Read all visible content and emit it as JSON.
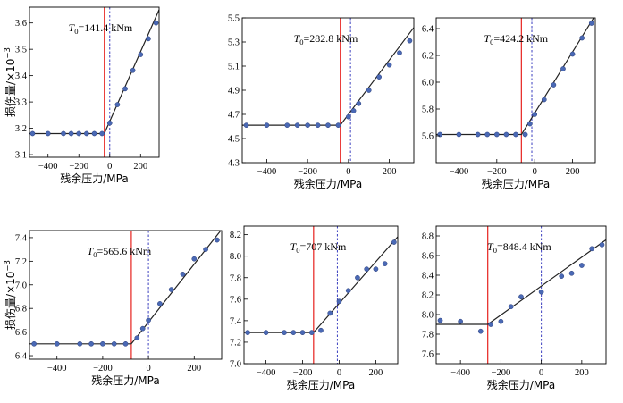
{
  "chart_data": [
    {
      "type": "scatter",
      "annotation_symbol": "T",
      "annotation_sub": "0",
      "annotation_value": "=141.4 kNm",
      "xlabel": "残余压力/MPa",
      "ylabel": "损伤量/×10",
      "ylabel_exp": "−3",
      "xlim": [
        -520,
        320
      ],
      "ylim": [
        3.09,
        3.66
      ],
      "xticks": [
        -400,
        -200,
        0,
        200
      ],
      "yticks": [
        3.1,
        3.2,
        3.3,
        3.4,
        3.5,
        3.6
      ],
      "red_line_x": -35,
      "blue_dashed_x": 0,
      "points": {
        "x": [
          -500,
          -400,
          -300,
          -250,
          -200,
          -150,
          -100,
          -50,
          0,
          50,
          100,
          150,
          200,
          250,
          300
        ],
        "y": [
          3.18,
          3.18,
          3.18,
          3.18,
          3.18,
          3.18,
          3.18,
          3.18,
          3.22,
          3.29,
          3.35,
          3.42,
          3.48,
          3.54,
          3.6
        ]
      },
      "fit_line": {
        "x": [
          -520,
          -35,
          320
        ],
        "y": [
          3.18,
          3.18,
          3.65
        ]
      }
    },
    {
      "type": "scatter",
      "annotation_symbol": "T",
      "annotation_sub": "0",
      "annotation_value": "=282.8 kNm",
      "xlabel": "残余压力/MPa",
      "ylabel": "",
      "ylabel_exp": "",
      "xlim": [
        -520,
        320
      ],
      "ylim": [
        4.3,
        5.5
      ],
      "xticks": [
        -400,
        -200,
        0,
        200
      ],
      "yticks": [
        4.3,
        4.5,
        4.7,
        4.9,
        5.1,
        5.3,
        5.5
      ],
      "red_line_x": -40,
      "blue_dashed_x": 10,
      "points": {
        "x": [
          -500,
          -400,
          -300,
          -250,
          -200,
          -150,
          -100,
          -50,
          0,
          25,
          50,
          100,
          150,
          200,
          250,
          300
        ],
        "y": [
          4.61,
          4.61,
          4.61,
          4.61,
          4.61,
          4.61,
          4.61,
          4.61,
          4.68,
          4.73,
          4.79,
          4.9,
          5.01,
          5.11,
          5.21,
          5.31
        ]
      },
      "fit_line": {
        "x": [
          -520,
          -40,
          320
        ],
        "y": [
          4.61,
          4.61,
          5.42
        ]
      }
    },
    {
      "type": "scatter",
      "annotation_symbol": "T",
      "annotation_sub": "0",
      "annotation_value": "=424.2 kNm",
      "xlabel": "残余压力/MPa",
      "ylabel": "",
      "ylabel_exp": "",
      "xlim": [
        -520,
        320
      ],
      "ylim": [
        5.4,
        6.48
      ],
      "xticks": [
        -400,
        -200,
        0,
        200
      ],
      "yticks": [
        5.6,
        5.8,
        6.0,
        6.2,
        6.4
      ],
      "red_line_x": -70,
      "blue_dashed_x": -15,
      "points": {
        "x": [
          -500,
          -400,
          -300,
          -250,
          -200,
          -150,
          -100,
          -50,
          -25,
          0,
          50,
          100,
          150,
          200,
          250,
          300
        ],
        "y": [
          5.61,
          5.61,
          5.61,
          5.61,
          5.61,
          5.61,
          5.61,
          5.61,
          5.69,
          5.76,
          5.87,
          5.98,
          6.1,
          6.21,
          6.33,
          6.44
        ]
      },
      "fit_line": {
        "x": [
          -520,
          -70,
          320
        ],
        "y": [
          5.61,
          5.61,
          6.5
        ]
      }
    },
    {
      "type": "scatter",
      "annotation_symbol": "T",
      "annotation_sub": "0",
      "annotation_value": "=565.6 kNm",
      "xlabel": "残余压力/MPa",
      "ylabel": "损伤量/×10",
      "ylabel_exp": "−3",
      "xlim": [
        -520,
        320
      ],
      "ylim": [
        6.37,
        7.46
      ],
      "xticks": [
        -400,
        -200,
        0,
        200
      ],
      "yticks": [
        6.4,
        6.6,
        6.8,
        7.0,
        7.2,
        7.4
      ],
      "red_line_x": -75,
      "blue_dashed_x": 0,
      "points": {
        "x": [
          -500,
          -400,
          -300,
          -250,
          -200,
          -150,
          -100,
          -50,
          -25,
          0,
          50,
          100,
          150,
          200,
          250,
          300
        ],
        "y": [
          6.5,
          6.5,
          6.5,
          6.5,
          6.5,
          6.5,
          6.5,
          6.55,
          6.63,
          6.7,
          6.84,
          6.96,
          7.09,
          7.22,
          7.3,
          7.38
        ]
      },
      "fit_line": {
        "x": [
          -520,
          -75,
          320
        ],
        "y": [
          6.5,
          6.5,
          7.47
        ]
      }
    },
    {
      "type": "scatter",
      "annotation_symbol": "T",
      "annotation_sub": "0",
      "annotation_value": "=707 kNm",
      "xlabel": "残余压力/MPa",
      "ylabel": "",
      "ylabel_exp": "",
      "xlim": [
        -520,
        320
      ],
      "ylim": [
        7.0,
        8.28
      ],
      "xticks": [
        -400,
        -200,
        0,
        200
      ],
      "yticks": [
        7.0,
        7.2,
        7.4,
        7.6,
        7.8,
        8.0,
        8.2
      ],
      "red_line_x": -140,
      "blue_dashed_x": -10,
      "points": {
        "x": [
          -500,
          -400,
          -300,
          -250,
          -200,
          -150,
          -100,
          -50,
          0,
          50,
          100,
          150,
          200,
          250,
          300
        ],
        "y": [
          7.29,
          7.29,
          7.29,
          7.29,
          7.29,
          7.29,
          7.31,
          7.47,
          7.58,
          7.68,
          7.8,
          7.88,
          7.88,
          7.93,
          8.13
        ]
      },
      "fit_line": {
        "x": [
          -520,
          -140,
          320
        ],
        "y": [
          7.29,
          7.29,
          8.18
        ]
      }
    },
    {
      "type": "scatter",
      "annotation_symbol": "T",
      "annotation_sub": "0",
      "annotation_value": "=848.4 kNm",
      "xlabel": "残余压力/MPa",
      "ylabel": "",
      "ylabel_exp": "",
      "xlim": [
        -520,
        320
      ],
      "ylim": [
        7.5,
        8.9
      ],
      "xticks": [
        -400,
        -200,
        0,
        200
      ],
      "yticks": [
        7.6,
        7.8,
        8.0,
        8.2,
        8.4,
        8.6,
        8.8
      ],
      "red_line_x": -265,
      "blue_dashed_x": 0,
      "points": {
        "x": [
          -500,
          -400,
          -300,
          -250,
          -200,
          -150,
          -100,
          0,
          100,
          150,
          200,
          250,
          300
        ],
        "y": [
          7.94,
          7.93,
          7.83,
          7.9,
          7.93,
          8.08,
          8.18,
          8.23,
          8.39,
          8.42,
          8.5,
          8.67,
          8.71
        ]
      },
      "fit_line": {
        "x": [
          -520,
          -265,
          320
        ],
        "y": [
          7.9,
          7.9,
          8.76
        ]
      }
    }
  ]
}
